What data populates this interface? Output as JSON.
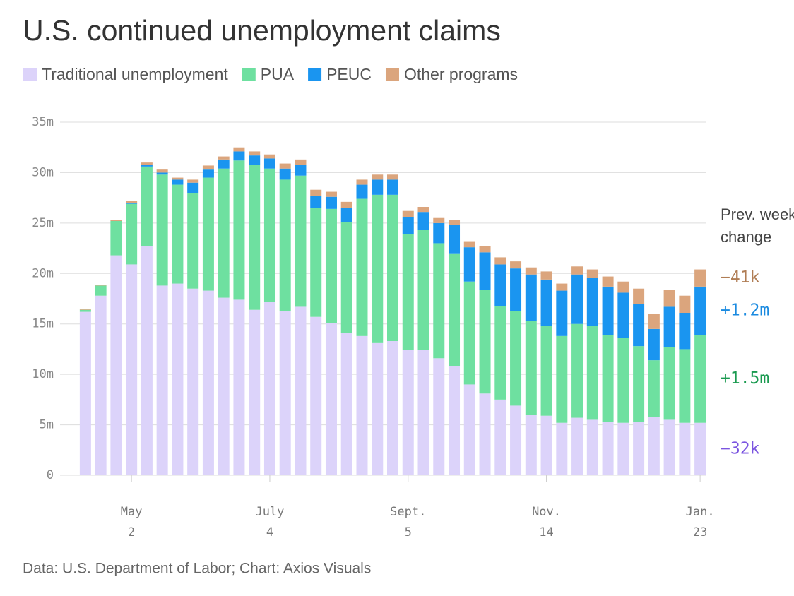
{
  "chart_data": {
    "type": "stacked_bar",
    "title": "U.S. continued unemployment claims",
    "source": "Data: U.S. Department of Labor; Chart: Axios Visuals",
    "categories": [
      null,
      null,
      null,
      "May\n2",
      null,
      null,
      null,
      null,
      null,
      null,
      null,
      null,
      "July\n4",
      null,
      null,
      null,
      null,
      null,
      null,
      null,
      null,
      "Sept.\n5",
      null,
      null,
      null,
      null,
      null,
      null,
      null,
      null,
      "Nov.\n14",
      null,
      null,
      null,
      null,
      null,
      null,
      null,
      null,
      null,
      "Jan.\n23"
    ],
    "series": [
      {
        "name": "Traditional unemployment",
        "color": "#dcd3fa",
        "values": [
          16.2,
          17.8,
          21.8,
          20.9,
          22.7,
          18.8,
          19.0,
          18.5,
          18.3,
          17.6,
          17.4,
          16.4,
          17.2,
          16.3,
          16.7,
          15.7,
          15.1,
          14.1,
          13.8,
          13.1,
          13.3,
          12.4,
          12.4,
          11.6,
          10.8,
          9.0,
          8.1,
          7.5,
          6.9,
          6.0,
          5.9,
          5.2,
          5.7,
          5.5,
          5.3,
          5.2,
          5.3,
          5.8,
          5.5,
          5.2,
          5.2
        ]
      },
      {
        "name": "PUA",
        "color": "#6ee0a0",
        "values": [
          0.2,
          1.0,
          3.4,
          6.0,
          7.9,
          11.0,
          9.8,
          9.5,
          11.2,
          12.8,
          13.8,
          14.4,
          13.2,
          13.0,
          13.0,
          10.8,
          11.3,
          11.0,
          13.6,
          14.7,
          14.5,
          11.5,
          11.9,
          11.4,
          11.2,
          10.2,
          10.3,
          9.3,
          9.4,
          9.3,
          8.9,
          8.6,
          9.3,
          9.3,
          8.6,
          8.4,
          7.5,
          5.6,
          7.2,
          7.3,
          8.7
        ]
      },
      {
        "name": "PEUC",
        "color": "#1a95f0",
        "values": [
          0,
          0,
          0,
          0.1,
          0.2,
          0.2,
          0.5,
          1.0,
          0.8,
          0.9,
          0.9,
          0.9,
          1.0,
          1.1,
          1.1,
          1.2,
          1.2,
          1.4,
          1.4,
          1.5,
          1.5,
          1.7,
          1.8,
          2.0,
          2.8,
          3.4,
          3.7,
          4.1,
          4.2,
          4.6,
          4.6,
          4.5,
          4.9,
          4.8,
          4.8,
          4.5,
          4.2,
          3.1,
          4.0,
          3.6,
          4.8
        ]
      },
      {
        "name": "Other programs",
        "color": "#dba57d",
        "values": [
          0.1,
          0.1,
          0.1,
          0.2,
          0.2,
          0.3,
          0.2,
          0.3,
          0.4,
          0.3,
          0.4,
          0.4,
          0.4,
          0.5,
          0.5,
          0.6,
          0.5,
          0.6,
          0.5,
          0.5,
          0.5,
          0.6,
          0.5,
          0.5,
          0.5,
          0.6,
          0.6,
          0.7,
          0.7,
          0.7,
          0.8,
          0.7,
          0.8,
          0.8,
          1.0,
          1.1,
          1.5,
          1.5,
          1.7,
          1.7,
          1.7
        ]
      }
    ],
    "ylim": [
      0,
      35
    ],
    "yticks": [
      0,
      {
        "value": 5,
        "label": "5m"
      },
      {
        "value": 10,
        "label": "10m"
      },
      {
        "value": 15,
        "label": "15m"
      },
      {
        "value": 20,
        "label": "20m"
      },
      {
        "value": 25,
        "label": "25m"
      },
      {
        "value": 30,
        "label": "30m"
      },
      {
        "value": 35,
        "label": "35m"
      }
    ],
    "grid": true,
    "legend": "top",
    "change_title": "Prev. week change",
    "changes": [
      {
        "series": 3,
        "label": "−41k",
        "color": "#b07d55"
      },
      {
        "series": 2,
        "label": "+1.2m",
        "color": "#1a8ae0"
      },
      {
        "series": 1,
        "label": "+1.5m",
        "color": "#1a9a50"
      },
      {
        "series": 0,
        "label": "−32k",
        "color": "#7b55e0"
      }
    ]
  }
}
